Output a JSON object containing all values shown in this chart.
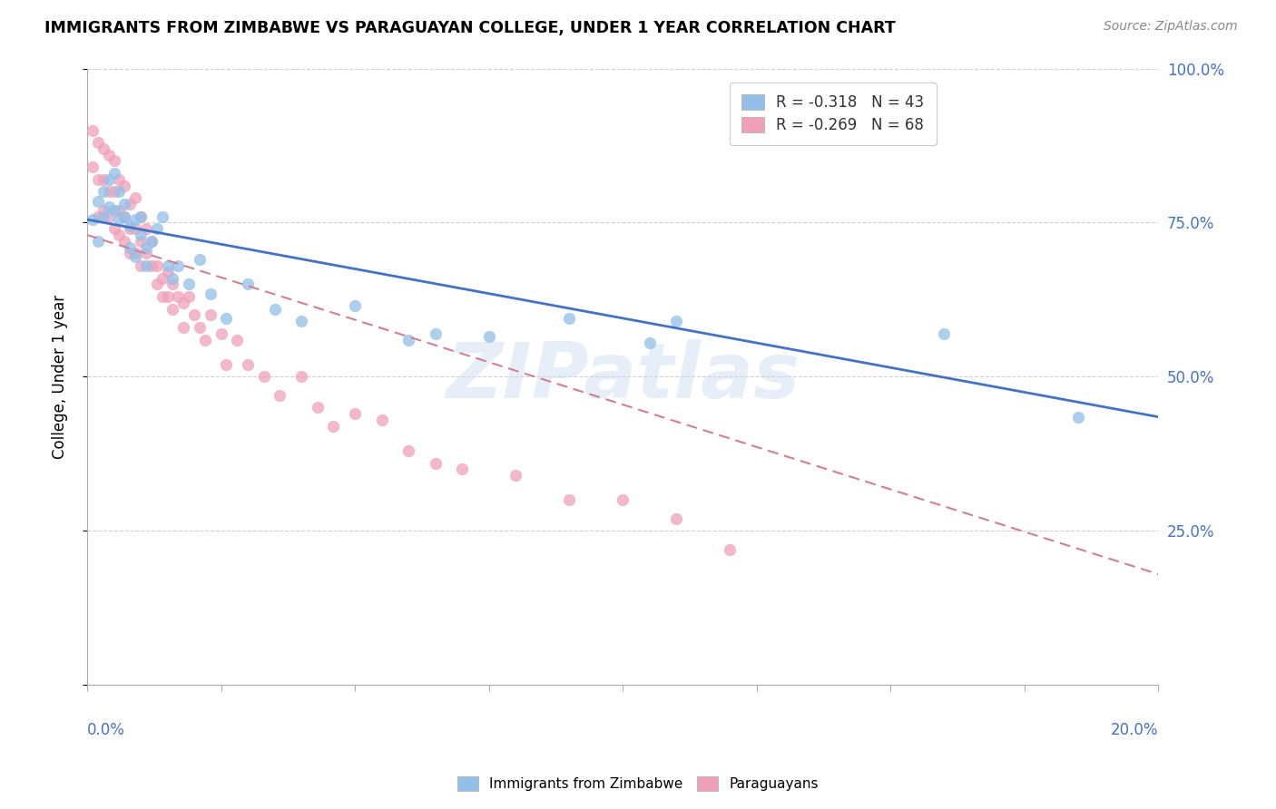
{
  "title": "IMMIGRANTS FROM ZIMBABWE VS PARAGUAYAN COLLEGE, UNDER 1 YEAR CORRELATION CHART",
  "source": "Source: ZipAtlas.com",
  "ylabel": "College, Under 1 year",
  "legend_line1": "R = -0.318   N = 43",
  "legend_line2": "R = -0.269   N = 68",
  "blue_color": "#92C0E8",
  "pink_color": "#F0A0B8",
  "blue_line_color": "#4472C4",
  "pink_line_color": "#D08090",
  "watermark": "ZIPatlas",
  "blue_line_x0": 0.0,
  "blue_line_y0": 0.755,
  "blue_line_x1": 0.2,
  "blue_line_y1": 0.435,
  "pink_line_x0": 0.0,
  "pink_line_y0": 0.73,
  "pink_line_x1": 0.2,
  "pink_line_y1": 0.18,
  "xlim": [
    0,
    0.2
  ],
  "ylim": [
    0,
    1.0
  ],
  "blue_pts_x": [
    0.001,
    0.002,
    0.002,
    0.003,
    0.003,
    0.004,
    0.004,
    0.005,
    0.005,
    0.006,
    0.006,
    0.007,
    0.007,
    0.008,
    0.008,
    0.009,
    0.009,
    0.01,
    0.01,
    0.011,
    0.011,
    0.012,
    0.013,
    0.014,
    0.015,
    0.016,
    0.017,
    0.019,
    0.021,
    0.023,
    0.026,
    0.03,
    0.035,
    0.04,
    0.05,
    0.06,
    0.065,
    0.075,
    0.09,
    0.105,
    0.11,
    0.16,
    0.185
  ],
  "blue_pts_y": [
    0.755,
    0.785,
    0.72,
    0.8,
    0.76,
    0.82,
    0.775,
    0.83,
    0.77,
    0.8,
    0.755,
    0.76,
    0.78,
    0.71,
    0.745,
    0.755,
    0.695,
    0.73,
    0.76,
    0.71,
    0.68,
    0.72,
    0.74,
    0.76,
    0.68,
    0.66,
    0.68,
    0.65,
    0.69,
    0.635,
    0.595,
    0.65,
    0.61,
    0.59,
    0.615,
    0.56,
    0.57,
    0.565,
    0.595,
    0.555,
    0.59,
    0.57,
    0.435
  ],
  "pink_pts_x": [
    0.001,
    0.001,
    0.002,
    0.002,
    0.002,
    0.003,
    0.003,
    0.003,
    0.004,
    0.004,
    0.004,
    0.005,
    0.005,
    0.005,
    0.006,
    0.006,
    0.006,
    0.007,
    0.007,
    0.007,
    0.008,
    0.008,
    0.008,
    0.009,
    0.009,
    0.009,
    0.01,
    0.01,
    0.01,
    0.011,
    0.011,
    0.012,
    0.012,
    0.013,
    0.013,
    0.014,
    0.014,
    0.015,
    0.015,
    0.016,
    0.016,
    0.017,
    0.018,
    0.018,
    0.019,
    0.02,
    0.021,
    0.022,
    0.023,
    0.025,
    0.026,
    0.028,
    0.03,
    0.033,
    0.036,
    0.04,
    0.043,
    0.046,
    0.05,
    0.055,
    0.06,
    0.065,
    0.07,
    0.08,
    0.09,
    0.1,
    0.11,
    0.12
  ],
  "pink_pts_y": [
    0.9,
    0.84,
    0.88,
    0.82,
    0.76,
    0.87,
    0.82,
    0.77,
    0.86,
    0.8,
    0.76,
    0.85,
    0.8,
    0.74,
    0.82,
    0.77,
    0.73,
    0.81,
    0.76,
    0.72,
    0.78,
    0.74,
    0.7,
    0.79,
    0.74,
    0.7,
    0.76,
    0.72,
    0.68,
    0.74,
    0.7,
    0.72,
    0.68,
    0.68,
    0.65,
    0.66,
    0.63,
    0.67,
    0.63,
    0.65,
    0.61,
    0.63,
    0.62,
    0.58,
    0.63,
    0.6,
    0.58,
    0.56,
    0.6,
    0.57,
    0.52,
    0.56,
    0.52,
    0.5,
    0.47,
    0.5,
    0.45,
    0.42,
    0.44,
    0.43,
    0.38,
    0.36,
    0.35,
    0.34,
    0.3,
    0.3,
    0.27,
    0.22
  ]
}
